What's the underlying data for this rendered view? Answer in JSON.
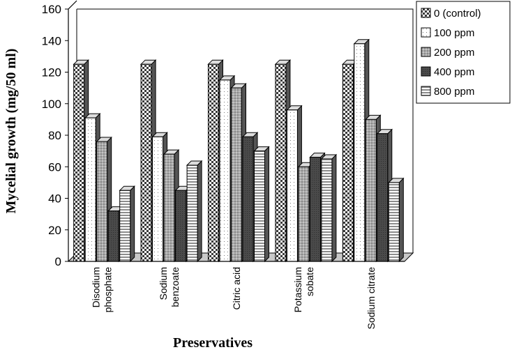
{
  "chart_data": {
    "type": "bar",
    "title": "",
    "xlabel": "Preservatives",
    "ylabel": "Mycelial growth (mg/50 ml)",
    "ylim": [
      0,
      160
    ],
    "yticks": [
      0,
      20,
      40,
      60,
      80,
      100,
      120,
      140,
      160
    ],
    "categories": [
      [
        "Disodium",
        "phosphate"
      ],
      [
        "Sodium",
        "benzoate"
      ],
      [
        "Citric acid"
      ],
      [
        "Potassium",
        "sobate"
      ],
      [
        "Sodium citrate"
      ]
    ],
    "series": [
      {
        "name": "0 (control)",
        "pattern": "checker",
        "values": [
          125,
          125,
          125,
          125,
          125
        ]
      },
      {
        "name": "100 ppm",
        "pattern": "dots",
        "values": [
          91,
          79,
          115,
          96,
          138
        ]
      },
      {
        "name": "200 ppm",
        "pattern": "gray",
        "values": [
          76,
          68,
          110,
          60,
          90
        ]
      },
      {
        "name": "400 ppm",
        "pattern": "dark",
        "values": [
          32,
          45,
          79,
          66,
          81
        ]
      },
      {
        "name": "800 ppm",
        "pattern": "hlines",
        "values": [
          45,
          61,
          70,
          65,
          50
        ]
      }
    ],
    "grid": false,
    "legend": "top-right",
    "style": "3d"
  }
}
